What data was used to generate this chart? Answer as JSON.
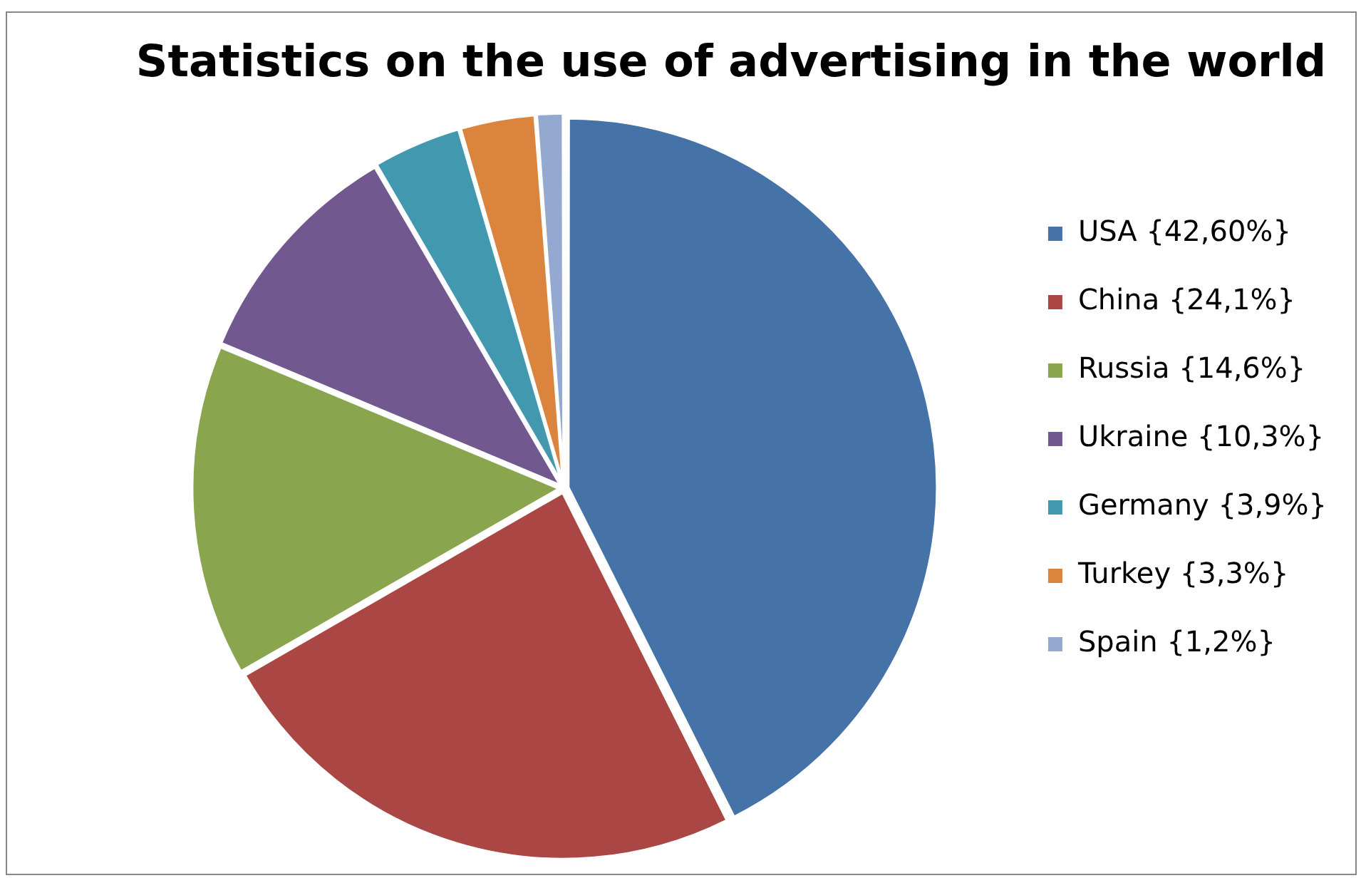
{
  "chart_data": {
    "type": "pie",
    "title": "Statistics on the use of advertising in the world",
    "categories": [
      "USA {42,60%}",
      "China {24,1%}",
      "Russia {14,6%}",
      "Ukraine {10,3%}",
      "Germany {3,9%}",
      "Turkey {3,3%}",
      "Spain {1,2%}"
    ],
    "values": [
      42.6,
      24.1,
      14.6,
      10.3,
      3.9,
      3.3,
      1.2
    ],
    "colors": [
      "#4572a7",
      "#aa4643",
      "#89a54e",
      "#71588f",
      "#4198af",
      "#db843d",
      "#93a9cf"
    ],
    "legend": "right"
  }
}
